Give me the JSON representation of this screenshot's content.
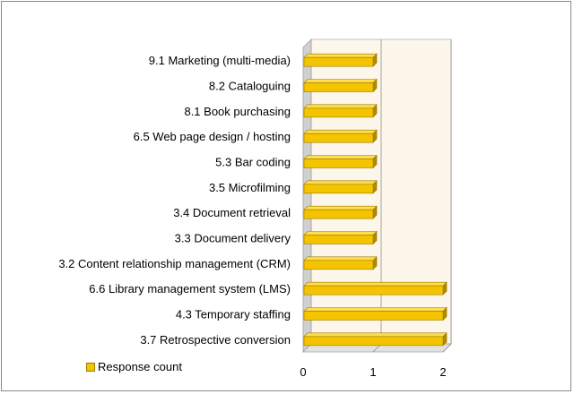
{
  "chart_data": {
    "type": "bar",
    "orientation": "horizontal",
    "three_d": true,
    "categories": [
      "9.1 Marketing (multi-media)",
      "8.2 Cataloguing",
      "8.1 Book purchasing",
      "6.5 Web page design / hosting",
      "5.3 Bar coding",
      "3.5 Microfilming",
      "3.4 Document retrieval",
      "3.3 Document delivery",
      "3.2 Content relationship management (CRM)",
      "6.6 Library management system (LMS)",
      "4.3 Temporary staffing",
      "3.7 Retrospective conversion"
    ],
    "series": [
      {
        "name": "Response count",
        "values": [
          1,
          1,
          1,
          1,
          1,
          1,
          1,
          1,
          1,
          2,
          2,
          2
        ]
      }
    ],
    "xlim": [
      0,
      2
    ],
    "xticks": [
      "0",
      "1",
      "2"
    ],
    "title": "",
    "xlabel": "",
    "ylabel": "",
    "grid": true,
    "legend_position": "bottom-left",
    "colors": {
      "bar": "#f5c400",
      "bar_top": "#ffdd4d",
      "bar_side": "#b08a00",
      "plot_bg": "#fdf6ea",
      "wall": "#d0d0d0"
    }
  }
}
